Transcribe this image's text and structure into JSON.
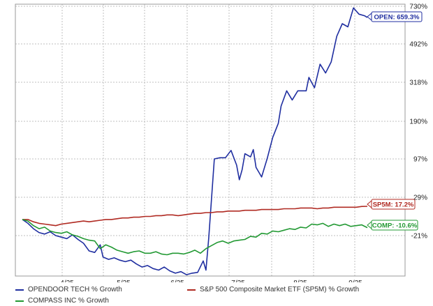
{
  "chart_data": {
    "type": "line",
    "title": "",
    "xlabel": "",
    "ylabel": "",
    "x_ticks": [
      "4/25",
      "5/25",
      "6/25",
      "7/25",
      "8/25",
      "9/25"
    ],
    "y_ticks": [
      "730%",
      "492%",
      "318%",
      "190%",
      "97%",
      "29%",
      "-21%"
    ],
    "grid": true,
    "legend_position": "bottom",
    "series": [
      {
        "name": "OPENDOOR TECH % Growth",
        "color": "#1f2ea0",
        "end_label": "OPEN: 659.3%",
        "values": [
          [
            0,
            0
          ],
          [
            4,
            -5
          ],
          [
            8,
            -12
          ],
          [
            12,
            -17
          ],
          [
            16,
            -19
          ],
          [
            20,
            -16
          ],
          [
            24,
            -21
          ],
          [
            28,
            -23
          ],
          [
            32,
            -25
          ],
          [
            36,
            -20
          ],
          [
            40,
            -26
          ],
          [
            44,
            -31
          ],
          [
            48,
            -41
          ],
          [
            52,
            -43
          ],
          [
            56,
            -33
          ],
          [
            58,
            -49
          ],
          [
            62,
            -52
          ],
          [
            66,
            -50
          ],
          [
            70,
            -53
          ],
          [
            74,
            -55
          ],
          [
            78,
            -53
          ],
          [
            82,
            -58
          ],
          [
            86,
            -62
          ],
          [
            90,
            -60
          ],
          [
            94,
            -64
          ],
          [
            98,
            -66
          ],
          [
            102,
            -62
          ],
          [
            106,
            -67
          ],
          [
            110,
            -70
          ],
          [
            114,
            -68
          ],
          [
            118,
            -72
          ],
          [
            122,
            -70
          ],
          [
            126,
            -69
          ],
          [
            130,
            -54
          ],
          [
            132,
            -66
          ],
          [
            134,
            -24
          ],
          [
            138,
            97
          ],
          [
            142,
            100
          ],
          [
            146,
            100
          ],
          [
            150,
            118
          ],
          [
            154,
            86
          ],
          [
            156,
            60
          ],
          [
            158,
            78
          ],
          [
            160,
            110
          ],
          [
            164,
            102
          ],
          [
            166,
            120
          ],
          [
            168,
            82
          ],
          [
            172,
            65
          ],
          [
            176,
            98
          ],
          [
            180,
            150
          ],
          [
            184,
            185
          ],
          [
            186,
            240
          ],
          [
            190,
            290
          ],
          [
            194,
            260
          ],
          [
            198,
            290
          ],
          [
            204,
            290
          ],
          [
            206,
            340
          ],
          [
            210,
            300
          ],
          [
            214,
            400
          ],
          [
            218,
            360
          ],
          [
            222,
            410
          ],
          [
            226,
            540
          ],
          [
            230,
            620
          ],
          [
            234,
            600
          ],
          [
            238,
            720
          ],
          [
            242,
            680
          ],
          [
            246,
            670
          ],
          [
            248,
            659
          ]
        ]
      },
      {
        "name": "S&P 500 Composite Market ETF (SP5M) % Growth",
        "color": "#b02a22",
        "end_label": "SP5M: 17.2%",
        "values": [
          [
            0,
            0
          ],
          [
            4,
            0
          ],
          [
            8,
            -3
          ],
          [
            12,
            -5
          ],
          [
            16,
            -6
          ],
          [
            20,
            -7
          ],
          [
            24,
            -8
          ],
          [
            28,
            -6
          ],
          [
            32,
            -5
          ],
          [
            36,
            -4
          ],
          [
            40,
            -3
          ],
          [
            44,
            -2
          ],
          [
            48,
            -3
          ],
          [
            52,
            -2
          ],
          [
            56,
            -1
          ],
          [
            60,
            0
          ],
          [
            64,
            0
          ],
          [
            68,
            1
          ],
          [
            72,
            2
          ],
          [
            76,
            2
          ],
          [
            80,
            3
          ],
          [
            84,
            3
          ],
          [
            88,
            4
          ],
          [
            92,
            4
          ],
          [
            96,
            5
          ],
          [
            100,
            5
          ],
          [
            104,
            6
          ],
          [
            108,
            6
          ],
          [
            112,
            5
          ],
          [
            116,
            6
          ],
          [
            120,
            7
          ],
          [
            124,
            8
          ],
          [
            128,
            8
          ],
          [
            132,
            9
          ],
          [
            136,
            9
          ],
          [
            140,
            10
          ],
          [
            144,
            10
          ],
          [
            148,
            11
          ],
          [
            152,
            11
          ],
          [
            156,
            11
          ],
          [
            160,
            12
          ],
          [
            164,
            12
          ],
          [
            168,
            12
          ],
          [
            172,
            13
          ],
          [
            176,
            13
          ],
          [
            180,
            13
          ],
          [
            184,
            13
          ],
          [
            188,
            14
          ],
          [
            192,
            14
          ],
          [
            196,
            14
          ],
          [
            200,
            15
          ],
          [
            204,
            15
          ],
          [
            208,
            15
          ],
          [
            212,
            14
          ],
          [
            216,
            15
          ],
          [
            220,
            15
          ],
          [
            224,
            16
          ],
          [
            228,
            16
          ],
          [
            232,
            16
          ],
          [
            236,
            16
          ],
          [
            240,
            16
          ],
          [
            244,
            17
          ],
          [
            248,
            17.2
          ]
        ]
      },
      {
        "name": "COMPASS INC % Growth",
        "color": "#229933",
        "end_label": "COMP: -10.6%",
        "values": [
          [
            0,
            0
          ],
          [
            4,
            -2
          ],
          [
            8,
            -8
          ],
          [
            12,
            -12
          ],
          [
            16,
            -10
          ],
          [
            20,
            -15
          ],
          [
            24,
            -17
          ],
          [
            28,
            -18
          ],
          [
            32,
            -16
          ],
          [
            36,
            -20
          ],
          [
            40,
            -22
          ],
          [
            44,
            -25
          ],
          [
            48,
            -27
          ],
          [
            52,
            -28
          ],
          [
            56,
            -38
          ],
          [
            60,
            -33
          ],
          [
            64,
            -36
          ],
          [
            68,
            -40
          ],
          [
            72,
            -42
          ],
          [
            76,
            -44
          ],
          [
            80,
            -42
          ],
          [
            84,
            -41
          ],
          [
            88,
            -44
          ],
          [
            92,
            -44
          ],
          [
            96,
            -42
          ],
          [
            100,
            -45
          ],
          [
            104,
            -46
          ],
          [
            108,
            -44
          ],
          [
            112,
            -44
          ],
          [
            116,
            -45
          ],
          [
            120,
            -43
          ],
          [
            124,
            -40
          ],
          [
            128,
            -44
          ],
          [
            132,
            -38
          ],
          [
            136,
            -34
          ],
          [
            140,
            -30
          ],
          [
            144,
            -28
          ],
          [
            148,
            -31
          ],
          [
            152,
            -28
          ],
          [
            156,
            -27
          ],
          [
            160,
            -26
          ],
          [
            164,
            -22
          ],
          [
            168,
            -23
          ],
          [
            172,
            -18
          ],
          [
            176,
            -19
          ],
          [
            180,
            -15
          ],
          [
            184,
            -16
          ],
          [
            188,
            -14
          ],
          [
            192,
            -12
          ],
          [
            196,
            -13
          ],
          [
            200,
            -10
          ],
          [
            204,
            -11
          ],
          [
            208,
            -6
          ],
          [
            212,
            -7
          ],
          [
            216,
            -5
          ],
          [
            220,
            -9
          ],
          [
            224,
            -6
          ],
          [
            228,
            -8
          ],
          [
            232,
            -6
          ],
          [
            236,
            -9
          ],
          [
            240,
            -8
          ],
          [
            244,
            -7
          ],
          [
            248,
            -10.6
          ]
        ]
      }
    ]
  }
}
